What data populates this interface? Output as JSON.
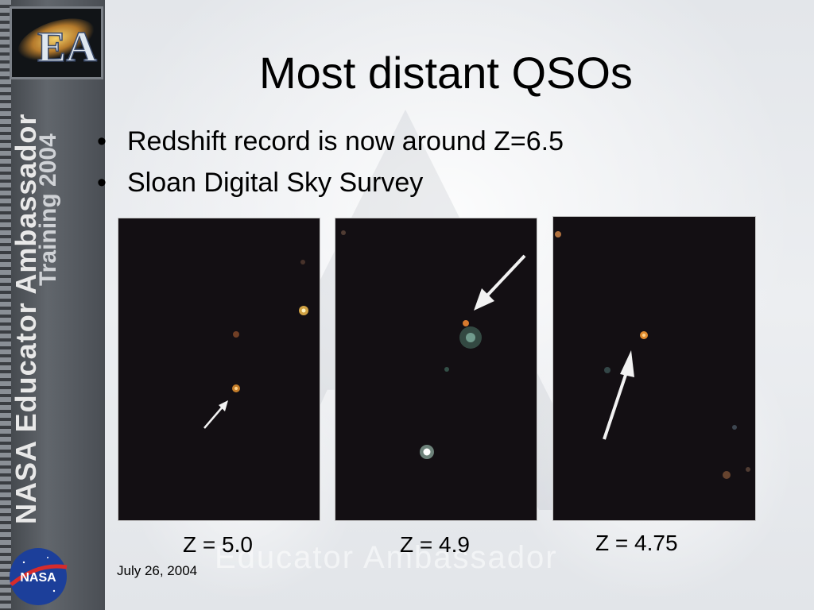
{
  "title": "Most distant QSOs",
  "bullets": [
    "Redshift record is now around Z=6.5",
    "Sloan Digital Sky Survey"
  ],
  "bullet_symbol": "•",
  "panels": [
    {
      "caption": "Z = 5.0"
    },
    {
      "caption": "Z = 4.9"
    },
    {
      "caption": "Z = 4.75"
    }
  ],
  "footer": {
    "date": "July 26, 2004"
  },
  "sidebar": {
    "vertical_title": "NASA Educator Ambassador",
    "vertical_subtitle": "Training 2004",
    "logo_letters": "EA",
    "nasa_logo": "NASA"
  },
  "watermark": "Educator Ambassador",
  "colors": {
    "panel_bg": "#120f12",
    "arrow": "#f2f2f2"
  }
}
